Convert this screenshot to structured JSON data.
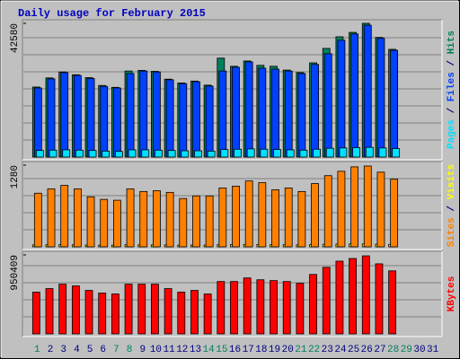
{
  "chart_data": {
    "type": "bar",
    "title": "Daily usage for February 2015",
    "categories": [
      1,
      2,
      3,
      4,
      5,
      6,
      7,
      8,
      9,
      10,
      11,
      12,
      13,
      14,
      15,
      16,
      17,
      18,
      19,
      20,
      21,
      22,
      23,
      24,
      25,
      26,
      27,
      28,
      29,
      30,
      31
    ],
    "category_colors": [
      "#00805c",
      "#000080",
      "#000080",
      "#000080",
      "#000080",
      "#000080",
      "#00805c",
      "#00805c",
      "#000080",
      "#000080",
      "#000080",
      "#000080",
      "#000080",
      "#00805c",
      "#00805c",
      "#000080",
      "#000080",
      "#000080",
      "#000080",
      "#000080",
      "#00805c",
      "#00805c",
      "#000080",
      "#000080",
      "#000080",
      "#000080",
      "#000080",
      "#00805c",
      "#00805c",
      "#000080",
      "#000080"
    ],
    "legend_separator": " / ",
    "panels": [
      {
        "ylim": [
          0,
          42580
        ],
        "yticks": [
          42580
        ],
        "series": [
          {
            "name": "Pages",
            "color": "#00e0ff",
            "values": [
              2100,
              2200,
              2300,
              2200,
              2100,
              1900,
              1800,
              2300,
              2300,
              2200,
              2100,
              2000,
              2000,
              1900,
              2400,
              2500,
              2600,
              2500,
              2400,
              2300,
              2200,
              2500,
              2800,
              2900,
              3000,
              3100,
              2900,
              2700,
              null,
              null,
              null
            ]
          },
          {
            "name": "Files",
            "color": "#0040ff",
            "values": [
              22000,
              24900,
              26900,
              26000,
              25000,
              22500,
              22000,
              26600,
              27400,
              27100,
              24600,
              23400,
              24000,
              22600,
              27400,
              28600,
              30300,
              28300,
              28000,
              27400,
              26600,
              29500,
              32900,
              37200,
              39200,
              42000,
              37800,
              34000,
              null,
              null,
              null
            ]
          },
          {
            "name": "Hits",
            "color": "#00805c",
            "values": [
              22300,
              25200,
              27100,
              26200,
              25300,
              22800,
              22200,
              27400,
              27600,
              27300,
              24800,
              23600,
              24200,
              22900,
              31500,
              28900,
              30600,
              29200,
              28900,
              27700,
              26900,
              30000,
              34600,
              38300,
              39700,
              42580,
              38100,
              34300,
              null,
              null,
              null
            ]
          }
        ]
      },
      {
        "ylim": [
          0,
          1280
        ],
        "yticks": [
          1280
        ],
        "series": [
          {
            "name": "Sites",
            "color": "#ff8000",
            "values": [
              840,
              908,
              963,
              908,
              784,
              743,
              730,
              908,
              867,
              880,
              853,
              757,
              798,
              798,
              922,
              950,
              1032,
              1005,
              894,
              922,
              867,
              991,
              1115,
              1184,
              1253,
              1266,
              1170,
              1060,
              null,
              null,
              null
            ]
          },
          {
            "name": "Visits",
            "color": "#ffff00",
            "values": [
              30,
              32,
              34,
              32,
              28,
              26,
              26,
              32,
              31,
              31,
              30,
              27,
              28,
              28,
              33,
              34,
              37,
              36,
              32,
              33,
              31,
              35,
              40,
              42,
              45,
              45,
              42,
              38,
              null,
              null,
              null
            ]
          }
        ]
      },
      {
        "ylim": [
          0,
          950409
        ],
        "yticks": [
          950409
        ],
        "series": [
          {
            "name": "KBytes",
            "color": "#ff0000",
            "values": [
              502000,
              545000,
              598000,
              577000,
              523000,
              491000,
              480000,
              598000,
              598000,
              598000,
              545000,
              502000,
              523000,
              480000,
              630000,
              630000,
              673000,
              651000,
              641000,
              630000,
              608000,
              715000,
              801000,
              875000,
              907000,
              939000,
              843000,
              758000,
              null,
              null,
              null
            ]
          }
        ]
      }
    ]
  }
}
